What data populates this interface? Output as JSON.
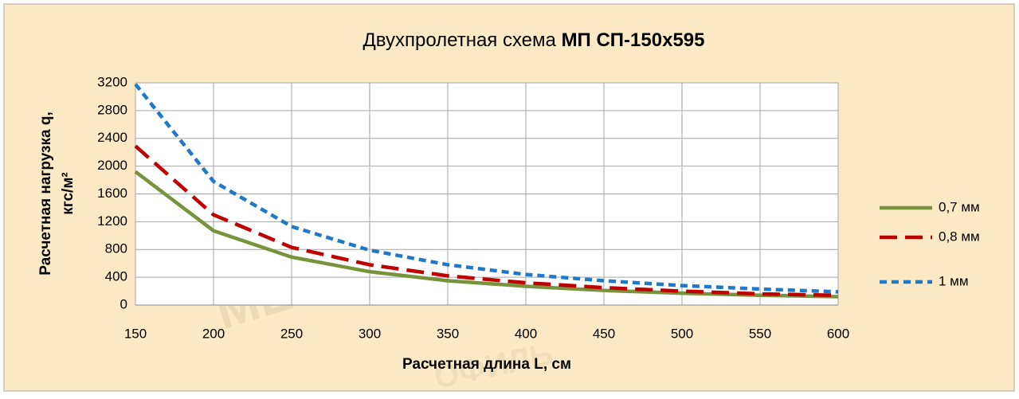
{
  "chart_data": {
    "type": "line",
    "title": [
      "Двухпролетная схема",
      "МП СП-150х595"
    ],
    "watermark": [
      "МЕТАЛЛ ПРОФИЛЬ",
      "ОФИЛЬ"
    ],
    "x_label": "Расчетная длина L, см",
    "y_label": [
      "Расчетная нагрузка q,",
      "кгс/м²"
    ],
    "x": [
      150,
      200,
      250,
      300,
      350,
      400,
      450,
      500,
      550,
      600
    ],
    "series": [
      {
        "name": "0,7 мм",
        "color": "#77933c",
        "dash": "none",
        "values": [
          1920,
          1070,
          690,
          480,
          350,
          270,
          210,
          170,
          140,
          120
        ]
      },
      {
        "name": "0,8 мм",
        "color": "#c00000",
        "dash": "22 10",
        "values": [
          2290,
          1300,
          830,
          580,
          420,
          320,
          250,
          200,
          160,
          140
        ]
      },
      {
        "name": "1 мм",
        "color": "#1f78c8",
        "dash": "9 6",
        "values": [
          3180,
          1780,
          1130,
          790,
          580,
          440,
          350,
          280,
          230,
          190
        ]
      }
    ],
    "xlim": [
      150,
      600
    ],
    "xticks": [
      150,
      200,
      250,
      300,
      350,
      400,
      450,
      500,
      550,
      600
    ],
    "ylim": [
      0,
      3200
    ],
    "yticks": [
      0,
      400,
      800,
      1200,
      1600,
      2000,
      2400,
      2800,
      3200
    ],
    "grid": true,
    "legend": "right"
  }
}
